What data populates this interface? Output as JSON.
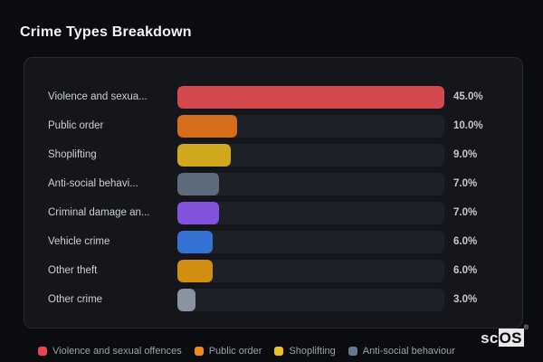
{
  "title": "Crime Types Breakdown",
  "watermark": {
    "prefix": "sc",
    "suffix": "OS",
    "registered": "®"
  },
  "colors": {
    "page_bg": "#0b0c10",
    "panel_bg": "#14161b",
    "panel_border": "#282b33",
    "track_bg": "#1d2026",
    "title_text": "#f4f5f7",
    "label_text": "#ccd0d6",
    "value_text": "#c5c8ce",
    "legend_text": "#9ba1ac"
  },
  "chart_data": {
    "type": "bar",
    "orientation": "horizontal",
    "title": "Crime Types Breakdown",
    "categories": [
      "Violence and sexua...",
      "Public order",
      "Shoplifting",
      "Anti-social behavi...",
      "Criminal damage an...",
      "Vehicle crime",
      "Other theft",
      "Other crime"
    ],
    "values": [
      45.0,
      10.0,
      9.0,
      7.0,
      7.0,
      6.0,
      6.0,
      3.0
    ],
    "value_labels": [
      "45.0%",
      "10.0%",
      "9.0%",
      "7.0%",
      "7.0%",
      "6.0%",
      "6.0%",
      "3.0%"
    ],
    "bar_colors": [
      "#d34a4e",
      "#d66d1a",
      "#cfa81d",
      "#5d6b7d",
      "#8353de",
      "#3672d4",
      "#d18f12",
      "#8b93a3"
    ],
    "xlim": [
      0,
      45
    ],
    "grid": false,
    "legend_position": "bottom",
    "legend": [
      {
        "label": "Violence and sexual offences",
        "color": "#e9464f"
      },
      {
        "label": "Public order",
        "color": "#f08a18"
      },
      {
        "label": "Shoplifting",
        "color": "#ecc01f"
      },
      {
        "label": "Anti-social behaviour",
        "color": "#64788f"
      }
    ]
  }
}
